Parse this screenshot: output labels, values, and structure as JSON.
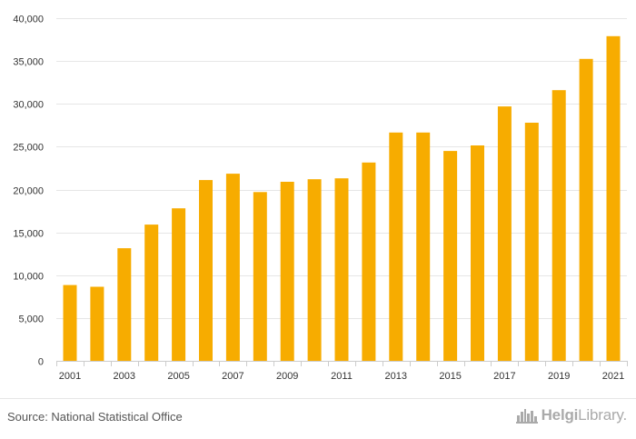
{
  "chart_data": {
    "type": "bar",
    "categories": [
      "2001",
      "2002",
      "2003",
      "2004",
      "2005",
      "2006",
      "2007",
      "2008",
      "2009",
      "2010",
      "2011",
      "2012",
      "2013",
      "2014",
      "2015",
      "2016",
      "2017",
      "2018",
      "2019",
      "2020",
      "2021"
    ],
    "values": [
      8850,
      8650,
      13150,
      15900,
      17800,
      21100,
      21850,
      19700,
      20900,
      21200,
      21300,
      23150,
      26650,
      26650,
      24500,
      25150,
      29700,
      27800,
      31600,
      35250,
      37900
    ],
    "x_tick_labels": [
      "2001",
      "2003",
      "2005",
      "2007",
      "2009",
      "2011",
      "2013",
      "2015",
      "2017",
      "2019",
      "2021"
    ],
    "y_tick_labels": [
      "0",
      "5,000",
      "10,000",
      "15,000",
      "20,000",
      "25,000",
      "30,000",
      "35,000",
      "40,000"
    ],
    "y_ticks": [
      0,
      5000,
      10000,
      15000,
      20000,
      25000,
      30000,
      35000,
      40000
    ],
    "ylim": [
      0,
      40000
    ],
    "title": "",
    "xlabel": "",
    "ylabel": "",
    "grid": true,
    "bar_color": "#f7ac00"
  },
  "footer": {
    "source": "Source: National Statistical Office",
    "brand_name_strong": "Helgi",
    "brand_name_rest": "Library."
  },
  "colors": {
    "grid": "#e6e6e6",
    "axis": "#cccccc",
    "tick_text": "#333333",
    "logo": "#aaaaaa"
  }
}
